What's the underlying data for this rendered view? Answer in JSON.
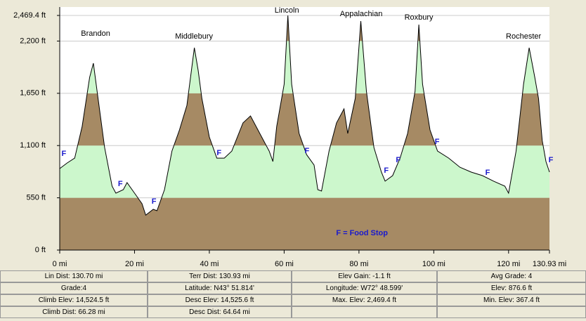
{
  "chart_data": {
    "type": "area",
    "x": [
      0,
      2,
      4,
      6,
      8,
      9,
      10,
      12,
      14,
      15,
      17,
      18,
      20,
      22,
      23,
      25,
      26,
      28,
      30,
      32,
      34,
      36,
      37,
      38,
      40,
      42,
      44,
      46,
      49,
      51,
      53,
      56,
      57,
      58,
      60,
      61,
      62,
      64,
      66,
      68,
      69,
      70,
      72,
      74,
      76,
      77,
      79,
      80.5,
      82,
      84,
      86,
      87,
      89,
      91,
      93,
      95,
      96,
      97,
      99,
      101,
      104,
      107,
      110,
      113,
      116,
      119,
      120,
      122,
      124,
      125.5,
      127,
      128,
      129,
      130,
      130.93
    ],
    "values": [
      858,
      917,
      968,
      1301,
      1819,
      1967,
      1671,
      1079,
      673,
      599,
      636,
      710,
      599,
      488,
      367.4,
      429,
      414,
      636,
      1042,
      1264,
      1523,
      2129,
      1893,
      1597,
      1190,
      968,
      968,
      1042,
      1338,
      1412,
      1264,
      1042,
      932,
      1301,
      1745,
      2469.4,
      1745,
      1227,
      1005,
      895,
      636,
      621,
      1042,
      1338,
      1486,
      1227,
      1597,
      2410,
      1671,
      1079,
      821,
      725,
      784,
      968,
      1227,
      1671,
      2373,
      1745,
      1264,
      1042,
      968,
      872,
      821,
      784,
      725,
      673,
      599,
      1042,
      1745,
      2129,
      1819,
      1597,
      1153,
      932,
      821
    ],
    "xlim": [
      0,
      130.93
    ],
    "xticks": [
      {
        "value": 0,
        "label": "0 mi"
      },
      {
        "value": 20,
        "label": "20 mi"
      },
      {
        "value": 40,
        "label": "40 mi"
      },
      {
        "value": 60,
        "label": "60 mi"
      },
      {
        "value": 80,
        "label": "80 mi"
      },
      {
        "value": 100,
        "label": "100 mi"
      },
      {
        "value": 120,
        "label": "120 mi"
      },
      {
        "value": 130.93,
        "label": "130.93 mi"
      }
    ],
    "ylim": [
      0,
      2469.4
    ],
    "yticks": [
      {
        "value": 0,
        "label": "0 ft"
      },
      {
        "value": 550,
        "label": "550 ft"
      },
      {
        "value": 1100,
        "label": "1,100 ft"
      },
      {
        "value": 1650,
        "label": "1,650 ft"
      },
      {
        "value": 2200,
        "label": "2,200 ft"
      },
      {
        "value": 2469.4,
        "label": "2,469.4 ft"
      }
    ],
    "grid": true,
    "band_colors": [
      "#a68a64",
      "#ccf7cc"
    ],
    "annotations": [
      {
        "text": "Brandon",
        "x": 9.6,
        "y": 2277
      },
      {
        "text": "Middlebury",
        "x": 35.9,
        "y": 2248
      },
      {
        "text": "Lincoln",
        "x": 60.7,
        "y": 2521
      },
      {
        "text": "Appalachian",
        "x": 80.6,
        "y": 2484
      },
      {
        "text": "Roxbury",
        "x": 96,
        "y": 2447
      },
      {
        "text": "Rochester",
        "x": 124,
        "y": 2248
      },
      {
        "text": "F",
        "x": 1.1,
        "y": 1013
      },
      {
        "text": "F",
        "x": 16.2,
        "y": 695
      },
      {
        "text": "F",
        "x": 25.2,
        "y": 510
      },
      {
        "text": "F",
        "x": 42.6,
        "y": 1020
      },
      {
        "text": "F",
        "x": 66.1,
        "y": 1042
      },
      {
        "text": "F",
        "x": 87.3,
        "y": 835
      },
      {
        "text": "F",
        "x": 90.5,
        "y": 946
      },
      {
        "text": "F",
        "x": 100.9,
        "y": 1138
      },
      {
        "text": "F",
        "x": 114.4,
        "y": 813
      },
      {
        "text": "F",
        "x": 131.3,
        "y": 946
      },
      {
        "text": "F = Food Stop",
        "x": 80.8,
        "y": 177
      }
    ]
  },
  "table": {
    "rows": [
      [
        "Lin Dist: 130.70 mi",
        "Terr Dist: 130.93 mi",
        "Elev Gain: -1.1 ft",
        "Avg Grade: 4"
      ],
      [
        "Grade:4",
        "Latitude: N43° 51.814'",
        "Longitude: W72° 48.599'",
        "Elev: 876.6 ft"
      ],
      [
        "Climb Elev: 14,524.5 ft",
        "Desc Elev: 14,525.6 ft",
        "Max. Elev: 2,469.4 ft",
        "Min. Elev: 367.4 ft"
      ],
      [
        "Climb Dist: 66.28 mi",
        "Desc Dist: 64.64 mi"
      ]
    ]
  }
}
